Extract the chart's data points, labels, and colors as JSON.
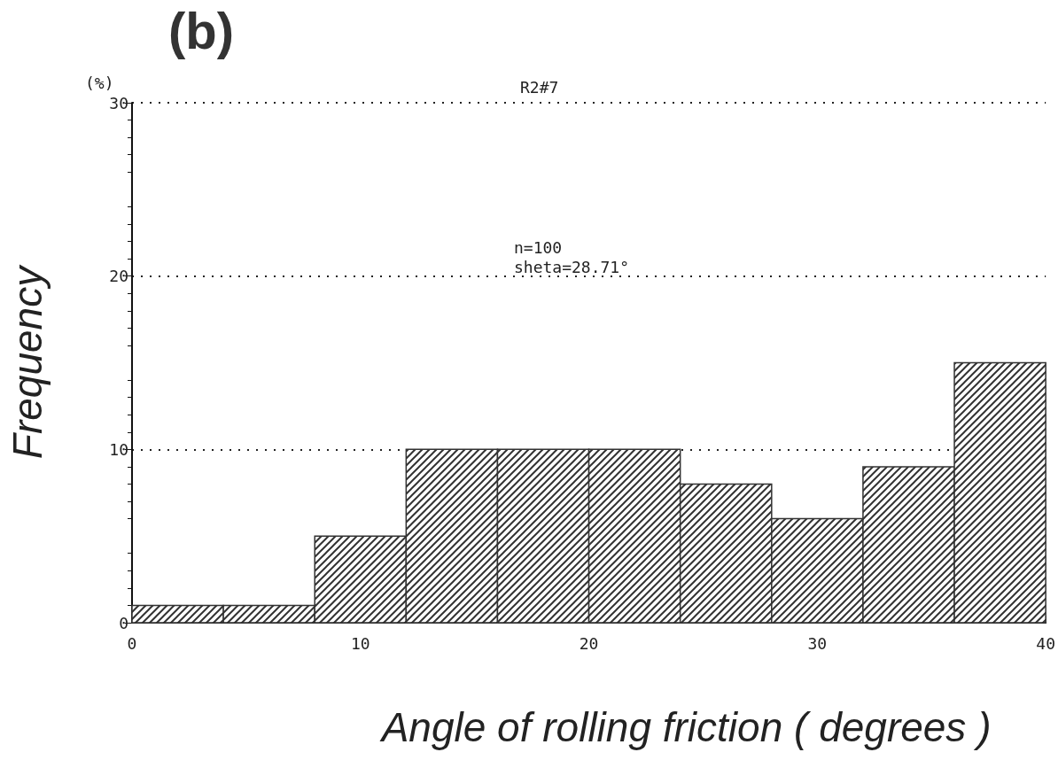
{
  "chart_data": {
    "type": "histogram",
    "title": "(b)",
    "subtitle": "R2#7",
    "xlabel": "Angle of rolling friction ( degrees )",
    "ylabel": "Frequency",
    "annotations": [
      "(%)",
      "n=100\nsheta=28.71°"
    ],
    "bins": [
      0,
      4,
      8,
      12,
      16,
      20,
      24,
      28,
      32,
      36,
      40
    ],
    "values": [
      1,
      1,
      5,
      10,
      10,
      10,
      8,
      6,
      9,
      15
    ],
    "color": "#333333",
    "xlim": [
      0,
      40
    ],
    "xticks": [
      0,
      10,
      20,
      30,
      40
    ],
    "ylim": [
      0,
      30
    ],
    "yticks": [
      0,
      10,
      20,
      30
    ],
    "grid": "y"
  }
}
